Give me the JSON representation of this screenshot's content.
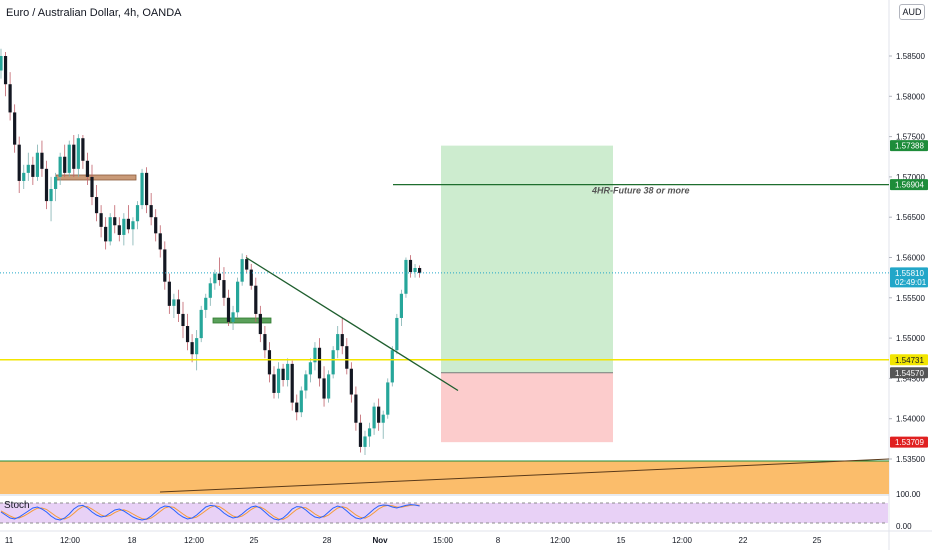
{
  "title": "Euro / Australian Dollar, 4h, OANDA",
  "currency_button": "AUD",
  "indicator_label": "Stoch",
  "annotation": "4HR-Future 38 or more",
  "price_axis": {
    "ticks": [
      "1.58500",
      "1.58000",
      "1.57500",
      "1.57000",
      "1.56500",
      "1.56000",
      "1.55500",
      "1.55000",
      "1.54500",
      "1.54000",
      "1.53500"
    ],
    "tick_values": [
      1.585,
      1.58,
      1.575,
      1.57,
      1.565,
      1.56,
      1.555,
      1.55,
      1.545,
      1.54,
      1.535
    ]
  },
  "price_tags": [
    {
      "label": "1.57388",
      "value": 1.57388,
      "color": "#1e8c3a"
    },
    {
      "label": "1.56904",
      "value": 1.56904,
      "color": "#1e8c3a"
    },
    {
      "label": "1.55810",
      "sub": "02:49:01",
      "value": 1.5581,
      "color": "#22a6c8"
    },
    {
      "label": "1.54731",
      "value": 1.54731,
      "color": "#f2e500",
      "text_color": "#131722"
    },
    {
      "label": "1.54570",
      "value": 1.5457,
      "color": "#555555"
    },
    {
      "label": "1.53709",
      "value": 1.53709,
      "color": "#e02020"
    }
  ],
  "stoch_axis": [
    "100.00",
    "0.00"
  ],
  "time_axis": [
    "11",
    "12:00",
    "18",
    "12:00",
    "25",
    "28",
    "Nov",
    "15:00",
    "8",
    "12:00",
    "15",
    "12:00",
    "22",
    "25"
  ],
  "candles": [
    [
      1.5832,
      1.5859,
      1.5822,
      1.585
    ],
    [
      1.585,
      1.5855,
      1.58,
      1.5815
    ],
    [
      1.5815,
      1.583,
      1.577,
      1.578
    ],
    [
      1.578,
      1.579,
      1.573,
      1.574
    ],
    [
      1.574,
      1.575,
      1.568,
      1.5695
    ],
    [
      1.5695,
      1.5715,
      1.5685,
      1.5705
    ],
    [
      1.5705,
      1.573,
      1.5695,
      1.5715
    ],
    [
      1.5715,
      1.5725,
      1.569,
      1.57
    ],
    [
      1.57,
      1.574,
      1.5695,
      1.573
    ],
    [
      1.573,
      1.5745,
      1.57,
      1.571
    ],
    [
      1.571,
      1.572,
      1.566,
      1.567
    ],
    [
      1.567,
      1.57,
      1.5645,
      1.5685
    ],
    [
      1.5685,
      1.5705,
      1.567,
      1.57
    ],
    [
      1.57,
      1.573,
      1.569,
      1.5725
    ],
    [
      1.5725,
      1.574,
      1.57,
      1.5705
    ],
    [
      1.5705,
      1.5745,
      1.57,
      1.574
    ],
    [
      1.574,
      1.5752,
      1.57,
      1.571
    ],
    [
      1.571,
      1.5753,
      1.57,
      1.5748
    ],
    [
      1.5748,
      1.5752,
      1.571,
      1.572
    ],
    [
      1.572,
      1.573,
      1.569,
      1.57
    ],
    [
      1.57,
      1.5715,
      1.5665,
      1.5675
    ],
    [
      1.5675,
      1.569,
      1.5645,
      1.5655
    ],
    [
      1.5655,
      1.5665,
      1.5625,
      1.5638
    ],
    [
      1.5638,
      1.565,
      1.561,
      1.562
    ],
    [
      1.562,
      1.5655,
      1.5615,
      1.565
    ],
    [
      1.565,
      1.5665,
      1.563,
      1.564
    ],
    [
      1.564,
      1.565,
      1.562,
      1.5628
    ],
    [
      1.5628,
      1.5655,
      1.5615,
      1.5648
    ],
    [
      1.5648,
      1.5665,
      1.563,
      1.5635
    ],
    [
      1.5635,
      1.565,
      1.5615,
      1.5645
    ],
    [
      1.5645,
      1.567,
      1.5635,
      1.5665
    ],
    [
      1.5665,
      1.571,
      1.566,
      1.5705
    ],
    [
      1.5705,
      1.5712,
      1.5655,
      1.5665
    ],
    [
      1.5665,
      1.568,
      1.564,
      1.565
    ],
    [
      1.565,
      1.566,
      1.562,
      1.563
    ],
    [
      1.563,
      1.564,
      1.56,
      1.561
    ],
    [
      1.561,
      1.562,
      1.556,
      1.557
    ],
    [
      1.557,
      1.558,
      1.553,
      1.554
    ],
    [
      1.554,
      1.5555,
      1.5525,
      1.5548
    ],
    [
      1.5548,
      1.556,
      1.552,
      1.553
    ],
    [
      1.553,
      1.5545,
      1.55,
      1.5515
    ],
    [
      1.5515,
      1.553,
      1.5485,
      1.5495
    ],
    [
      1.5495,
      1.5505,
      1.547,
      1.548
    ],
    [
      1.548,
      1.551,
      1.546,
      1.55
    ],
    [
      1.55,
      1.554,
      1.5495,
      1.5535
    ],
    [
      1.5535,
      1.5555,
      1.5525,
      1.555
    ],
    [
      1.555,
      1.5575,
      1.554,
      1.5568
    ],
    [
      1.5568,
      1.5585,
      1.556,
      1.558
    ],
    [
      1.558,
      1.56,
      1.5565,
      1.5572
    ],
    [
      1.5572,
      1.5588,
      1.554,
      1.555
    ],
    [
      1.555,
      1.556,
      1.5515,
      1.552
    ],
    [
      1.552,
      1.554,
      1.551,
      1.5532
    ],
    [
      1.5532,
      1.5575,
      1.5525,
      1.557
    ],
    [
      1.557,
      1.5605,
      1.5565,
      1.5598
    ],
    [
      1.5598,
      1.5603,
      1.558,
      1.5585
    ],
    [
      1.5585,
      1.5592,
      1.556,
      1.5565
    ],
    [
      1.5565,
      1.5575,
      1.552,
      1.553
    ],
    [
      1.553,
      1.554,
      1.5495,
      1.5505
    ],
    [
      1.5505,
      1.5515,
      1.5475,
      1.5485
    ],
    [
      1.5485,
      1.5495,
      1.5445,
      1.5455
    ],
    [
      1.5455,
      1.5465,
      1.5425,
      1.5432
    ],
    [
      1.5432,
      1.547,
      1.5425,
      1.5462
    ],
    [
      1.5462,
      1.5468,
      1.544,
      1.5448
    ],
    [
      1.5448,
      1.5475,
      1.544,
      1.5468
    ],
    [
      1.5468,
      1.5472,
      1.541,
      1.542
    ],
    [
      1.542,
      1.543,
      1.5398,
      1.5408
    ],
    [
      1.5408,
      1.544,
      1.5402,
      1.5435
    ],
    [
      1.5435,
      1.546,
      1.5425,
      1.5455
    ],
    [
      1.5455,
      1.5475,
      1.5445,
      1.547
    ],
    [
      1.547,
      1.5495,
      1.546,
      1.5488
    ],
    [
      1.5488,
      1.55,
      1.544,
      1.545
    ],
    [
      1.545,
      1.5465,
      1.5415,
      1.5425
    ],
    [
      1.5425,
      1.546,
      1.542,
      1.5455
    ],
    [
      1.5455,
      1.549,
      1.545,
      1.5485
    ],
    [
      1.5485,
      1.5515,
      1.5475,
      1.5505
    ],
    [
      1.5505,
      1.5525,
      1.548,
      1.549
    ],
    [
      1.549,
      1.55,
      1.5455,
      1.5462
    ],
    [
      1.5462,
      1.547,
      1.542,
      1.543
    ],
    [
      1.543,
      1.544,
      1.5385,
      1.5395
    ],
    [
      1.5395,
      1.5405,
      1.5358,
      1.5365
    ],
    [
      1.5365,
      1.5385,
      1.5355,
      1.5378
    ],
    [
      1.5378,
      1.5395,
      1.5365,
      1.5388
    ],
    [
      1.5388,
      1.542,
      1.538,
      1.5415
    ],
    [
      1.5415,
      1.5425,
      1.5385,
      1.5395
    ],
    [
      1.5395,
      1.541,
      1.5375,
      1.5405
    ],
    [
      1.5405,
      1.545,
      1.54,
      1.5445
    ],
    [
      1.5445,
      1.549,
      1.544,
      1.5485
    ],
    [
      1.5485,
      1.553,
      1.548,
      1.5525
    ],
    [
      1.5525,
      1.556,
      1.5515,
      1.5555
    ],
    [
      1.5555,
      1.56,
      1.555,
      1.5597
    ],
    [
      1.5597,
      1.5603,
      1.5575,
      1.5582
    ],
    [
      1.5582,
      1.5592,
      1.5575,
      1.5587
    ],
    [
      1.5587,
      1.559,
      1.5575,
      1.5581
    ]
  ],
  "stoch": {
    "k": [
      55,
      40,
      25,
      20,
      30,
      45,
      60,
      75,
      80,
      70,
      55,
      35,
      20,
      15,
      25,
      45,
      70,
      85,
      88,
      75,
      55,
      40,
      30,
      35,
      50,
      65,
      70,
      60,
      45,
      30,
      20,
      15,
      20,
      35,
      55,
      75,
      85,
      82,
      65,
      45,
      30,
      20,
      25,
      40,
      60,
      80,
      88,
      85,
      70,
      50,
      35,
      25,
      30,
      45,
      65,
      80,
      85,
      75,
      55,
      35,
      20,
      15,
      25,
      45,
      70,
      82,
      80,
      65,
      45,
      30,
      25,
      35,
      55,
      75,
      85,
      78,
      60,
      40,
      25,
      20,
      30,
      50,
      70,
      85,
      90,
      88,
      80,
      75,
      82,
      88,
      92,
      90,
      85
    ],
    "d": [
      60,
      48,
      35,
      25,
      25,
      35,
      48,
      62,
      74,
      75,
      68,
      52,
      35,
      22,
      20,
      30,
      48,
      68,
      82,
      82,
      70,
      55,
      40,
      32,
      38,
      52,
      62,
      66,
      58,
      45,
      32,
      22,
      18,
      25,
      40,
      58,
      75,
      82,
      78,
      62,
      45,
      30,
      24,
      30,
      45,
      62,
      78,
      86,
      82,
      68,
      50,
      35,
      28,
      35,
      50,
      68,
      80,
      80,
      68,
      50,
      32,
      20,
      18,
      30,
      50,
      68,
      78,
      76,
      62,
      45,
      32,
      30,
      40,
      58,
      75,
      82,
      75,
      58,
      40,
      28,
      24,
      35,
      52,
      70,
      83,
      88,
      86,
      80,
      79,
      84,
      88,
      90,
      88
    ]
  }
}
